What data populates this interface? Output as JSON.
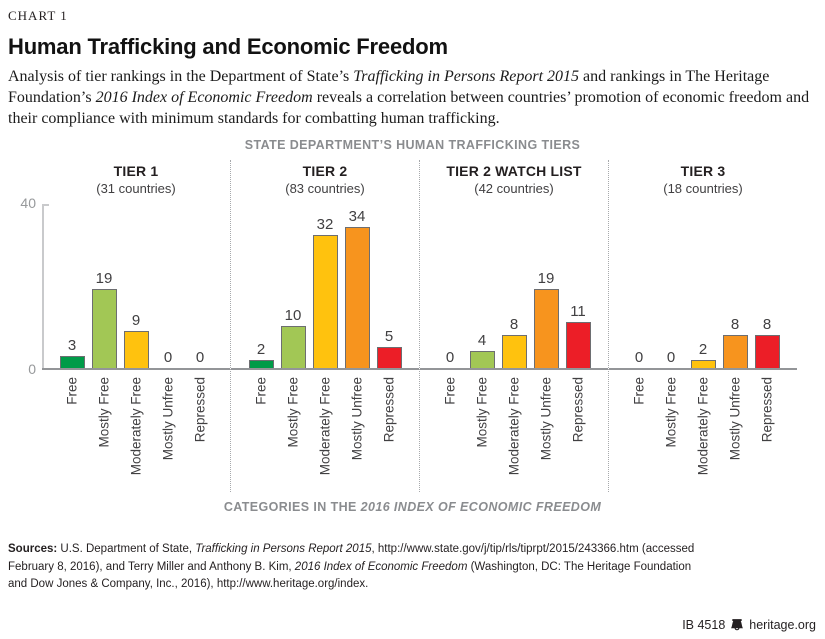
{
  "page": {
    "kicker": "CHART 1",
    "title": "Human Trafficking and Economic Freedom",
    "intro": {
      "part1": "Analysis of tier rankings in the Department of State’s ",
      "italic1": "Trafficking in Persons Report 2015",
      "part2": " and rankings in The Heritage Foundation’s ",
      "italic2": "2016 Index of Economic Freedom",
      "part3": " reveals a correlation between countries’ promotion of economic freedom and their compliance with minimum standards for combatting human trafficking."
    },
    "sources": {
      "label": "Sources:",
      "part1": " U.S. Department of State, ",
      "italic1": "Trafficking in Persons Report 2015",
      "part2": ", http://www.state.gov/j/tip/rls/tiprpt/2015/243366.htm (accessed February 8, 2016), and Terry Miller and Anthony B. Kim, ",
      "italic2": "2016 Index of Economic Freedom",
      "part3": " (Washington, DC: The Heritage Foundation and Dow Jones & Company, Inc., 2016), http://www.heritage.org/index."
    },
    "footer": {
      "id": "IB 4518",
      "logo_icon": "liberty-bell-icon",
      "site": "heritage.org"
    }
  },
  "chart_data": {
    "type": "bar",
    "title": "STATE DEPARTMENT’S HUMAN TRAFFICKING TIERS",
    "xlabel_prefix": "CATEGORIES IN THE ",
    "xlabel_italic": "2016 INDEX OF ECONOMIC FREEDOM",
    "ylim": [
      0,
      40
    ],
    "yticks": [
      0,
      40
    ],
    "grid": false,
    "legend": "none",
    "categories": [
      "Free",
      "Mostly Free",
      "Moderately Free",
      "Mostly Unfree",
      "Repressed"
    ],
    "category_colors": [
      "#009B48",
      "#A2C755",
      "#FFC20E",
      "#F7941E",
      "#EC1E27"
    ],
    "bar_border_color": "#6D6E71",
    "groups": [
      {
        "label": "TIER 1",
        "sublabel": "(31 countries)",
        "values": [
          3,
          19,
          9,
          0,
          0
        ]
      },
      {
        "label": "TIER 2",
        "sublabel": "(83 countries)",
        "values": [
          2,
          10,
          32,
          34,
          5
        ]
      },
      {
        "label": "TIER 2 WATCH LIST",
        "sublabel": "(42 countries)",
        "values": [
          0,
          4,
          8,
          19,
          11
        ]
      },
      {
        "label": "TIER 3",
        "sublabel": "(18 countries)",
        "values": [
          0,
          0,
          2,
          8,
          8
        ]
      }
    ]
  }
}
